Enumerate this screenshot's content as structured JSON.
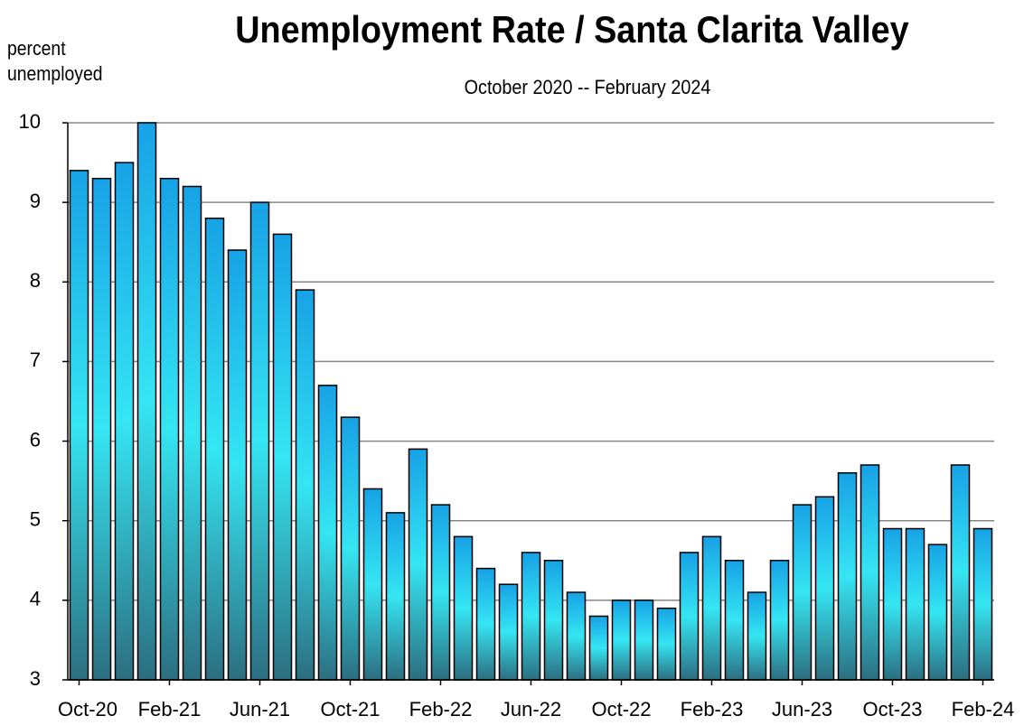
{
  "chart_data": {
    "type": "bar",
    "title": "Unemployment Rate / Santa Clarita Valley",
    "subtitle": "October 2020 -- February 2024",
    "y_label": "percent unemployed",
    "categories": [
      "Oct-20",
      null,
      null,
      null,
      "Feb-21",
      null,
      null,
      null,
      "Jun-21",
      null,
      null,
      null,
      "Oct-21",
      null,
      null,
      null,
      "Feb-22",
      null,
      null,
      null,
      "Jun-22",
      null,
      null,
      null,
      "Oct-22",
      null,
      null,
      null,
      "Feb-23",
      null,
      null,
      null,
      "Jun-23",
      null,
      null,
      null,
      "Oct-23",
      null,
      null,
      null,
      "Feb-24"
    ],
    "values": [
      9.4,
      9.3,
      9.5,
      10.0,
      9.3,
      9.2,
      8.8,
      8.4,
      9.0,
      8.6,
      7.9,
      6.7,
      6.3,
      5.4,
      5.1,
      5.9,
      5.2,
      4.8,
      4.4,
      4.2,
      4.6,
      4.5,
      4.1,
      3.8,
      4.0,
      4.0,
      3.9,
      4.6,
      4.8,
      4.5,
      4.1,
      4.5,
      5.2,
      5.3,
      5.6,
      5.7,
      4.9,
      4.9,
      4.7,
      5.7,
      4.9
    ],
    "gradient": [
      "#17a2e6",
      "#35e6f3",
      "#2c6e80"
    ],
    "ylim": [
      3,
      10
    ],
    "yticks": [
      3,
      4,
      5,
      6,
      7,
      8,
      9,
      10
    ],
    "grid": true
  }
}
